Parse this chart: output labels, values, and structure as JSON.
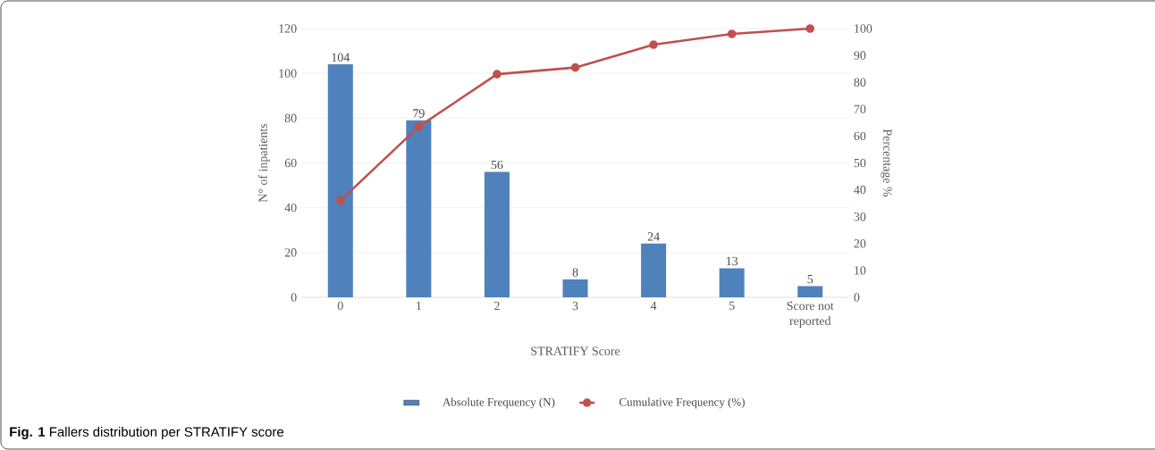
{
  "chart_data": {
    "type": "bar",
    "categories": [
      "0",
      "1",
      "2",
      "3",
      "4",
      "5",
      "Score not reported"
    ],
    "series": [
      {
        "name": "Absolute Frequency (N)",
        "color": "#4f81bd",
        "values": [
          104,
          79,
          56,
          8,
          24,
          13,
          5
        ],
        "value_labels": [
          "104",
          "79",
          "56",
          "8",
          "24",
          "13",
          "5"
        ]
      },
      {
        "name": "Cumulative Frequency (%)",
        "type": "line",
        "axis": "y2",
        "color": "#c0504d",
        "marker": "circle",
        "values": [
          36,
          63.5,
          83,
          85.5,
          94,
          98,
          100
        ]
      }
    ],
    "xlabel": "STRATIFY  Score",
    "ylabel": "N° of inpatients",
    "y2label": "Percentage %",
    "ylim": [
      0,
      120
    ],
    "yticks": [
      0,
      20,
      40,
      60,
      80,
      100,
      120
    ],
    "y2lim": [
      0,
      100
    ],
    "y2ticks": [
      0,
      10,
      20,
      30,
      40,
      50,
      60,
      70,
      80,
      90,
      100
    ],
    "grid": "y",
    "legend": "bottom",
    "annotations": [
      "**Fig. 1** Fallers distribution per STRATIFY score"
    ]
  }
}
